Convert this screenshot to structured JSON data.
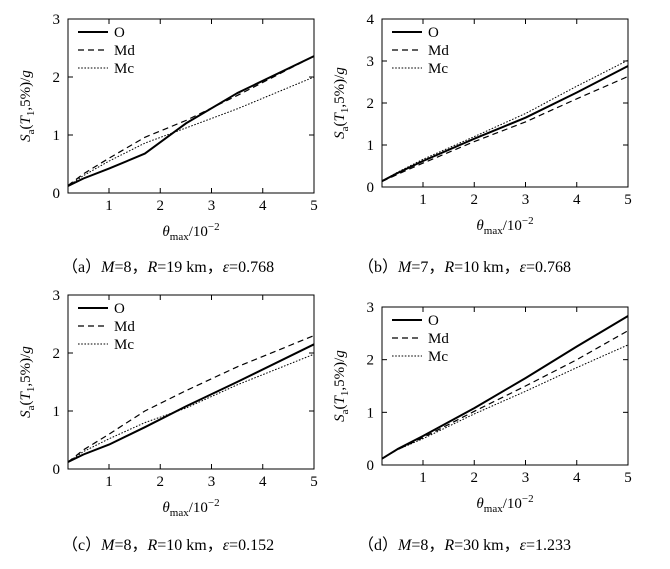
{
  "figure": {
    "ylabel_parts": {
      "s": "S",
      "sub": "a",
      "paren_open": "(",
      "t": "T",
      "tsub": "1",
      "rest": ",5%)/",
      "g": "g"
    },
    "xlabel_parts": {
      "theta": "θ",
      "sub": "max",
      "rest": "/10",
      "sup": "−2"
    }
  },
  "legend_labels": [
    "O",
    "Md",
    "Mc"
  ],
  "series_styles": [
    {
      "name": "O",
      "dash": "",
      "width": 2.0
    },
    {
      "name": "Md",
      "dash": "6,4",
      "width": 1.2
    },
    {
      "name": "Mc",
      "dash": "1.6,1.6",
      "width": 1.0
    }
  ],
  "chart_data": [
    {
      "type": "line",
      "panel": "a",
      "caption_parts": {
        "pre": "（a）",
        "M": "M",
        "mval": "=8，",
        "R": "R",
        "rval": "=19 km，",
        "eps": "ε",
        "eval": "=0.768"
      },
      "xlim": [
        0.2,
        5
      ],
      "ylim": [
        0,
        3
      ],
      "xticks": [
        1,
        2,
        3,
        4,
        5
      ],
      "yticks": [
        0,
        1,
        2,
        3
      ],
      "series": [
        {
          "name": "O",
          "x": [
            0.2,
            0.5,
            1,
            1.7,
            2.5,
            3.5,
            5
          ],
          "y": [
            0.12,
            0.25,
            0.42,
            0.68,
            1.2,
            1.72,
            2.36
          ]
        },
        {
          "name": "Md",
          "x": [
            0.2,
            0.5,
            1,
            1.7,
            2.5,
            3.5,
            5
          ],
          "y": [
            0.13,
            0.33,
            0.6,
            0.96,
            1.25,
            1.68,
            2.36
          ]
        },
        {
          "name": "Mc",
          "x": [
            0.2,
            0.5,
            1,
            1.7,
            2.5,
            3.5,
            5
          ],
          "y": [
            0.12,
            0.3,
            0.55,
            0.86,
            1.12,
            1.45,
            2.0
          ]
        }
      ]
    },
    {
      "type": "line",
      "panel": "b",
      "caption_parts": {
        "pre": "（b）",
        "M": "M",
        "mval": "=7，",
        "R": "R",
        "rval": "=10 km，",
        "eps": "ε",
        "eval": "=0.768"
      },
      "xlim": [
        0.2,
        5
      ],
      "ylim": [
        0,
        4
      ],
      "xticks": [
        1,
        2,
        3,
        4,
        5
      ],
      "yticks": [
        0,
        1,
        2,
        3,
        4
      ],
      "series": [
        {
          "name": "O",
          "x": [
            0.2,
            0.5,
            1,
            2,
            3,
            4,
            5
          ],
          "y": [
            0.14,
            0.33,
            0.62,
            1.15,
            1.65,
            2.25,
            2.88
          ]
        },
        {
          "name": "Md",
          "x": [
            0.2,
            0.5,
            1,
            2,
            3,
            4,
            5
          ],
          "y": [
            0.13,
            0.3,
            0.57,
            1.08,
            1.55,
            2.1,
            2.63
          ]
        },
        {
          "name": "Mc",
          "x": [
            0.2,
            0.5,
            1,
            2,
            3,
            4,
            5
          ],
          "y": [
            0.14,
            0.35,
            0.66,
            1.2,
            1.75,
            2.4,
            3.02
          ]
        }
      ]
    },
    {
      "type": "line",
      "panel": "c",
      "caption_parts": {
        "pre": "（c）",
        "M": "M",
        "mval": "=8，",
        "R": "R",
        "rval": "=10 km，",
        "eps": "ε",
        "eval": "=0.152"
      },
      "xlim": [
        0.2,
        5
      ],
      "ylim": [
        0,
        3
      ],
      "xticks": [
        1,
        2,
        3,
        4,
        5
      ],
      "yticks": [
        0,
        1,
        2,
        3
      ],
      "series": [
        {
          "name": "O",
          "x": [
            0.2,
            0.5,
            1,
            1.7,
            2.5,
            3.5,
            5
          ],
          "y": [
            0.12,
            0.25,
            0.42,
            0.72,
            1.08,
            1.5,
            2.15
          ]
        },
        {
          "name": "Md",
          "x": [
            0.2,
            0.5,
            1,
            1.7,
            2.5,
            3.5,
            5
          ],
          "y": [
            0.12,
            0.33,
            0.6,
            1.0,
            1.35,
            1.76,
            2.3
          ]
        },
        {
          "name": "Mc",
          "x": [
            0.2,
            0.5,
            1,
            1.7,
            2.5,
            3.5,
            5
          ],
          "y": [
            0.12,
            0.3,
            0.52,
            0.8,
            1.05,
            1.45,
            1.98
          ]
        }
      ]
    },
    {
      "type": "line",
      "panel": "d",
      "caption_parts": {
        "pre": "（d）",
        "M": "M",
        "mval": "=8，",
        "R": "R",
        "rval": "=30 km，",
        "eps": "ε",
        "eval": "=1.233"
      },
      "xlim": [
        0.2,
        5
      ],
      "ylim": [
        0,
        3
      ],
      "xticks": [
        1,
        2,
        3,
        4,
        5
      ],
      "yticks": [
        0,
        1,
        2,
        3
      ],
      "series": [
        {
          "name": "O",
          "x": [
            0.2,
            0.5,
            1,
            2,
            3,
            4,
            5
          ],
          "y": [
            0.12,
            0.3,
            0.55,
            1.08,
            1.65,
            2.25,
            2.83
          ]
        },
        {
          "name": "Md",
          "x": [
            0.2,
            0.5,
            1,
            2,
            3,
            4,
            5
          ],
          "y": [
            0.12,
            0.29,
            0.52,
            1.02,
            1.5,
            2.0,
            2.55
          ]
        },
        {
          "name": "Mc",
          "x": [
            0.2,
            0.5,
            1,
            2,
            3,
            4,
            5
          ],
          "y": [
            0.12,
            0.29,
            0.5,
            0.97,
            1.4,
            1.85,
            2.28
          ]
        }
      ]
    }
  ]
}
